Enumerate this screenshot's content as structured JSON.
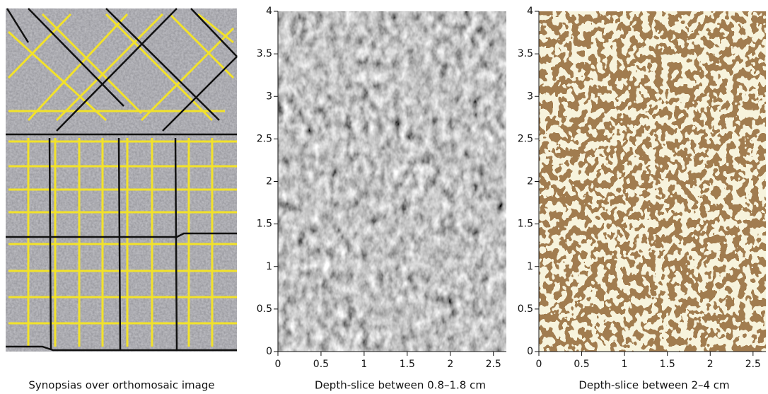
{
  "panels": [
    {
      "caption": "Synopsias over orthomosaic image"
    },
    {
      "caption": "Depth-slice between 0.8–1.8 cm",
      "xlim": [
        0,
        2.65
      ],
      "ylim": [
        0,
        4
      ],
      "xticks": [
        0,
        0.5,
        1,
        1.5,
        2,
        2.5
      ],
      "yticks": [
        0,
        0.5,
        1,
        1.5,
        2,
        2.5,
        3,
        3.5,
        4
      ]
    },
    {
      "caption": "Depth-slice between 2–4 cm",
      "xlim": [
        0,
        2.65
      ],
      "ylim": [
        0,
        4
      ],
      "xticks": [
        0,
        0.5,
        1,
        1.5,
        2,
        2.5
      ],
      "yticks": [
        0,
        0.5,
        1,
        1.5,
        2,
        2.5,
        3,
        3.5,
        4
      ]
    }
  ]
}
